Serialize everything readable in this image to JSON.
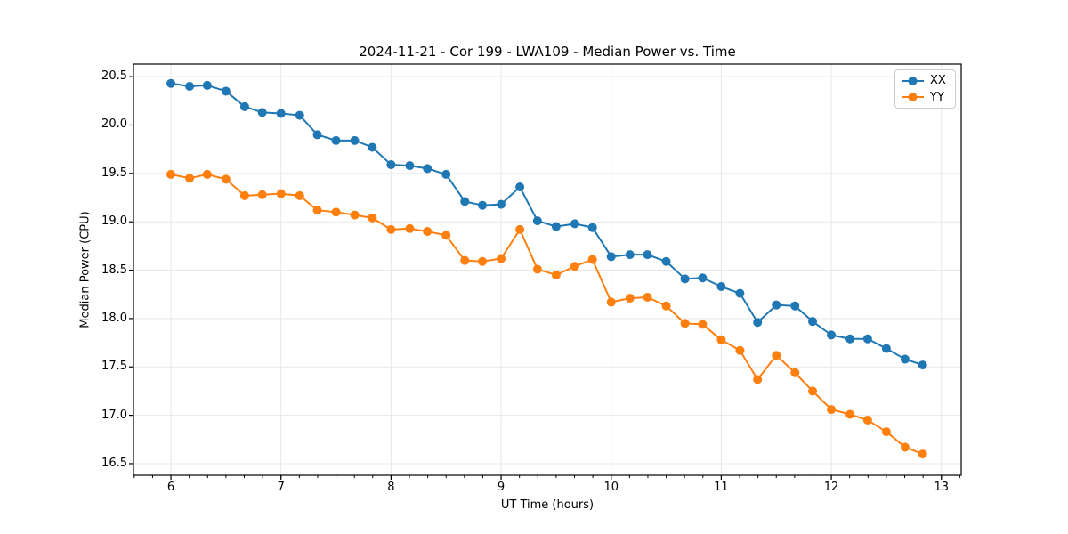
{
  "figure": {
    "title": "2024-11-21 - Cor 199 - LWA109 - Median Power vs. Time"
  },
  "chart_data": {
    "type": "line",
    "title": "2024-11-21 - Cor 199 - LWA109 - Median Power vs. Time",
    "xlabel": "UT Time (hours)",
    "ylabel": "Median Power (CPU)",
    "xlim": [
      5.66,
      13.18
    ],
    "ylim": [
      16.38,
      20.63
    ],
    "xticks": [
      6,
      7,
      8,
      9,
      10,
      11,
      12,
      13
    ],
    "xtick_labels": [
      "6",
      "7",
      "8",
      "9",
      "10",
      "11",
      "12",
      "13"
    ],
    "yticks": [
      16.5,
      17.0,
      17.5,
      18.0,
      18.5,
      19.0,
      19.5,
      20.0,
      20.5
    ],
    "ytick_labels": [
      "16.5",
      "17.0",
      "17.5",
      "18.0",
      "18.5",
      "19.0",
      "19.5",
      "20.0",
      "20.5"
    ],
    "x_minor_step": 0.166667,
    "grid": true,
    "grid_color": "#e7e7e7",
    "legend": {
      "position": "upper right",
      "entries": [
        {
          "label": "XX",
          "color": "#1f77b4"
        },
        {
          "label": "YY",
          "color": "#ff7f0e"
        }
      ]
    },
    "x": [
      6.0,
      6.17,
      6.33,
      6.5,
      6.67,
      6.83,
      7.0,
      7.17,
      7.33,
      7.5,
      7.67,
      7.83,
      8.0,
      8.17,
      8.33,
      8.5,
      8.67,
      8.83,
      9.0,
      9.17,
      9.33,
      9.5,
      9.67,
      9.83,
      10.0,
      10.17,
      10.33,
      10.5,
      10.67,
      10.83,
      11.0,
      11.17,
      11.33,
      11.5,
      11.67,
      11.83,
      12.0,
      12.17,
      12.33,
      12.5,
      12.67,
      12.83
    ],
    "series": [
      {
        "name": "XX",
        "color": "#1f77b4",
        "values": [
          20.43,
          20.4,
          20.41,
          20.35,
          20.19,
          20.13,
          20.12,
          20.1,
          19.9,
          19.84,
          19.84,
          19.77,
          19.59,
          19.58,
          19.55,
          19.49,
          19.21,
          19.17,
          19.18,
          19.36,
          19.01,
          18.95,
          18.98,
          18.94,
          18.64,
          18.66,
          18.66,
          18.59,
          18.41,
          18.42,
          18.33,
          18.26,
          17.96,
          18.14,
          18.13,
          17.97,
          17.83,
          17.79,
          17.79,
          17.69,
          17.58,
          17.52
        ]
      },
      {
        "name": "YY",
        "color": "#ff7f0e",
        "values": [
          19.49,
          19.45,
          19.49,
          19.44,
          19.27,
          19.28,
          19.29,
          19.27,
          19.12,
          19.1,
          19.07,
          19.04,
          18.92,
          18.93,
          18.9,
          18.86,
          18.6,
          18.59,
          18.62,
          18.92,
          18.51,
          18.45,
          18.54,
          18.61,
          18.17,
          18.21,
          18.22,
          18.13,
          17.95,
          17.94,
          17.78,
          17.67,
          17.37,
          17.62,
          17.44,
          17.25,
          17.06,
          17.01,
          16.95,
          16.83,
          16.67,
          16.6
        ]
      }
    ]
  }
}
